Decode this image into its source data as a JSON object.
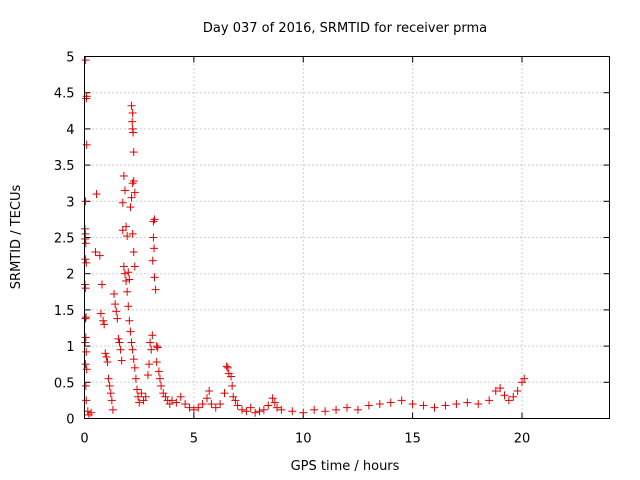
{
  "chart_data": {
    "type": "scatter",
    "title": "Day 037 of 2016, SRMTID for receiver prma",
    "xlabel": "GPS time / hours",
    "ylabel": "SRMTID / TECUs",
    "xlim": [
      0,
      24
    ],
    "ylim": [
      0,
      5
    ],
    "x_ticks": [
      0,
      5,
      10,
      15,
      20
    ],
    "x_tick_labels": [
      "0",
      "5",
      "10",
      "15",
      "20"
    ],
    "y_ticks": [
      0,
      0.5,
      1,
      1.5,
      2,
      2.5,
      3,
      3.5,
      4,
      4.5,
      5
    ],
    "y_tick_labels": [
      "0",
      "0.5",
      "1",
      "1.5",
      "2",
      "2.5",
      "3",
      "3.5",
      "4",
      "4.5",
      "5"
    ],
    "grid": true,
    "marker": "+",
    "color": "#e00000",
    "series": [
      {
        "name": "SRMTID",
        "points": [
          [
            0.05,
            4.95
          ],
          [
            0.1,
            4.45
          ],
          [
            0.08,
            4.42
          ],
          [
            0.1,
            3.78
          ],
          [
            0.05,
            3.0
          ],
          [
            0.02,
            2.62
          ],
          [
            0.04,
            2.55
          ],
          [
            0.03,
            2.48
          ],
          [
            0.06,
            2.42
          ],
          [
            0.04,
            2.2
          ],
          [
            0.08,
            2.15
          ],
          [
            0.02,
            1.85
          ],
          [
            0.05,
            1.8
          ],
          [
            0.07,
            1.4
          ],
          [
            0.04,
            1.38
          ],
          [
            0.06,
            1.12
          ],
          [
            0.03,
            1.05
          ],
          [
            0.08,
            0.92
          ],
          [
            0.05,
            0.75
          ],
          [
            0.1,
            0.68
          ],
          [
            0.06,
            0.45
          ],
          [
            0.08,
            0.25
          ],
          [
            0.15,
            0.1
          ],
          [
            0.2,
            0.05
          ],
          [
            0.3,
            0.08
          ],
          [
            0.55,
            3.1
          ],
          [
            0.5,
            2.3
          ],
          [
            0.7,
            2.25
          ],
          [
            0.8,
            1.85
          ],
          [
            0.75,
            1.45
          ],
          [
            0.85,
            1.35
          ],
          [
            0.9,
            1.3
          ],
          [
            0.95,
            0.9
          ],
          [
            1.0,
            0.85
          ],
          [
            1.05,
            0.78
          ],
          [
            1.1,
            0.55
          ],
          [
            1.15,
            0.45
          ],
          [
            1.2,
            0.35
          ],
          [
            1.25,
            0.25
          ],
          [
            1.3,
            0.12
          ],
          [
            1.35,
            1.72
          ],
          [
            1.4,
            1.58
          ],
          [
            1.45,
            1.48
          ],
          [
            1.5,
            1.38
          ],
          [
            1.55,
            1.1
          ],
          [
            1.6,
            1.05
          ],
          [
            1.65,
            0.95
          ],
          [
            1.7,
            0.8
          ],
          [
            1.75,
            2.98
          ],
          [
            1.8,
            3.35
          ],
          [
            1.85,
            3.15
          ],
          [
            1.9,
            2.65
          ],
          [
            1.95,
            2.52
          ],
          [
            1.75,
            2.6
          ],
          [
            1.8,
            2.1
          ],
          [
            1.85,
            2.0
          ],
          [
            1.9,
            1.9
          ],
          [
            1.95,
            1.75
          ],
          [
            2.0,
            1.55
          ],
          [
            2.05,
            1.35
          ],
          [
            2.0,
            2.02
          ],
          [
            2.05,
            1.92
          ],
          [
            2.1,
            2.92
          ],
          [
            2.15,
            3.05
          ],
          [
            2.2,
            3.25
          ],
          [
            2.25,
            3.28
          ],
          [
            2.3,
            3.12
          ],
          [
            2.15,
            4.32
          ],
          [
            2.2,
            4.22
          ],
          [
            2.18,
            4.1
          ],
          [
            2.2,
            4.0
          ],
          [
            2.22,
            3.95
          ],
          [
            2.25,
            3.68
          ],
          [
            2.2,
            2.55
          ],
          [
            2.25,
            2.3
          ],
          [
            2.3,
            2.1
          ],
          [
            2.1,
            1.2
          ],
          [
            2.15,
            1.05
          ],
          [
            2.2,
            0.95
          ],
          [
            2.25,
            0.82
          ],
          [
            2.3,
            0.7
          ],
          [
            2.35,
            0.55
          ],
          [
            2.4,
            0.4
          ],
          [
            2.45,
            0.3
          ],
          [
            2.5,
            0.22
          ],
          [
            2.6,
            0.35
          ],
          [
            2.7,
            0.25
          ],
          [
            2.8,
            0.3
          ],
          [
            2.9,
            0.6
          ],
          [
            2.95,
            0.75
          ],
          [
            3.0,
            1.05
          ],
          [
            3.05,
            0.95
          ],
          [
            3.1,
            1.15
          ],
          [
            3.15,
            2.72
          ],
          [
            3.2,
            2.75
          ],
          [
            3.15,
            2.5
          ],
          [
            3.18,
            2.35
          ],
          [
            3.12,
            2.18
          ],
          [
            3.2,
            1.95
          ],
          [
            3.25,
            1.78
          ],
          [
            3.3,
            1.0
          ],
          [
            3.35,
            0.98
          ],
          [
            3.3,
            0.78
          ],
          [
            3.4,
            0.65
          ],
          [
            3.45,
            0.55
          ],
          [
            3.5,
            0.45
          ],
          [
            3.6,
            0.35
          ],
          [
            3.7,
            0.3
          ],
          [
            3.8,
            0.25
          ],
          [
            3.9,
            0.2
          ],
          [
            4.0,
            0.25
          ],
          [
            4.2,
            0.22
          ],
          [
            4.4,
            0.3
          ],
          [
            4.6,
            0.2
          ],
          [
            4.8,
            0.15
          ],
          [
            5.0,
            0.12
          ],
          [
            5.2,
            0.15
          ],
          [
            5.4,
            0.2
          ],
          [
            5.6,
            0.28
          ],
          [
            5.7,
            0.38
          ],
          [
            5.8,
            0.2
          ],
          [
            6.0,
            0.15
          ],
          [
            6.2,
            0.2
          ],
          [
            6.4,
            0.35
          ],
          [
            6.5,
            0.72
          ],
          [
            6.55,
            0.7
          ],
          [
            6.6,
            0.62
          ],
          [
            6.7,
            0.58
          ],
          [
            6.75,
            0.45
          ],
          [
            6.8,
            0.3
          ],
          [
            6.9,
            0.25
          ],
          [
            7.0,
            0.18
          ],
          [
            7.2,
            0.12
          ],
          [
            7.4,
            0.1
          ],
          [
            7.6,
            0.15
          ],
          [
            7.8,
            0.08
          ],
          [
            8.0,
            0.1
          ],
          [
            8.2,
            0.12
          ],
          [
            8.4,
            0.18
          ],
          [
            8.6,
            0.28
          ],
          [
            8.7,
            0.22
          ],
          [
            8.8,
            0.15
          ],
          [
            9.0,
            0.12
          ],
          [
            9.5,
            0.1
          ],
          [
            10.0,
            0.08
          ],
          [
            10.5,
            0.12
          ],
          [
            11.0,
            0.1
          ],
          [
            11.5,
            0.12
          ],
          [
            12.0,
            0.15
          ],
          [
            12.5,
            0.12
          ],
          [
            13.0,
            0.18
          ],
          [
            13.5,
            0.2
          ],
          [
            14.0,
            0.22
          ],
          [
            14.5,
            0.25
          ],
          [
            15.0,
            0.2
          ],
          [
            15.5,
            0.18
          ],
          [
            16.0,
            0.15
          ],
          [
            16.5,
            0.18
          ],
          [
            17.0,
            0.2
          ],
          [
            17.5,
            0.22
          ],
          [
            18.0,
            0.2
          ],
          [
            18.5,
            0.25
          ],
          [
            18.8,
            0.38
          ],
          [
            19.0,
            0.42
          ],
          [
            19.2,
            0.32
          ],
          [
            19.4,
            0.25
          ],
          [
            19.6,
            0.3
          ],
          [
            19.8,
            0.38
          ],
          [
            20.0,
            0.5
          ],
          [
            20.1,
            0.55
          ]
        ]
      }
    ]
  }
}
